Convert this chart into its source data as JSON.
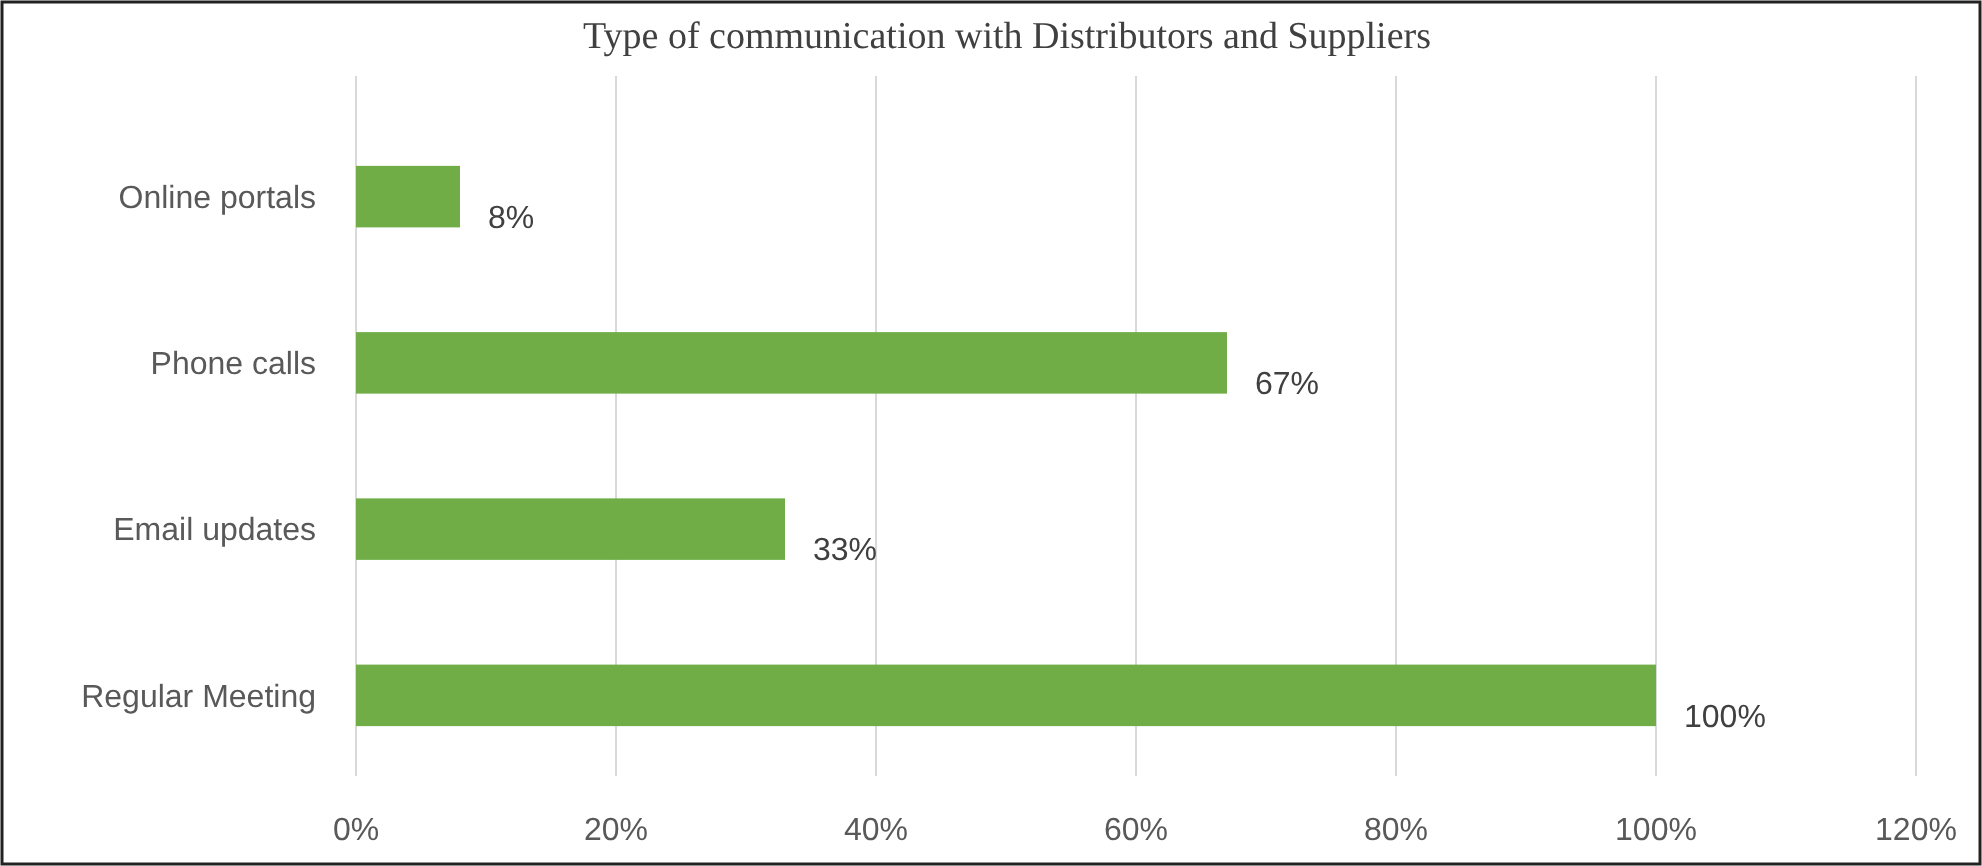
{
  "chart_data": {
    "type": "bar",
    "orientation": "horizontal",
    "title": "Type of communication with Distributors and Suppliers",
    "categories": [
      "Online portals",
      "Phone calls",
      "Email updates",
      "Regular Meeting"
    ],
    "values": [
      8,
      67,
      33,
      100
    ],
    "color": "#70ad47",
    "value_labels": [
      "8%",
      "67%",
      "33%",
      "100%"
    ],
    "xlim": [
      0,
      120
    ],
    "xticks": [
      {
        "value": 0,
        "label": "0%"
      },
      {
        "value": 20,
        "label": "20%"
      },
      {
        "value": 40,
        "label": "40%"
      },
      {
        "value": 60,
        "label": "60%"
      },
      {
        "value": 80,
        "label": "80%"
      },
      {
        "value": 100,
        "label": "100%"
      },
      {
        "value": 120,
        "label": "120%"
      }
    ],
    "grid": "x"
  }
}
